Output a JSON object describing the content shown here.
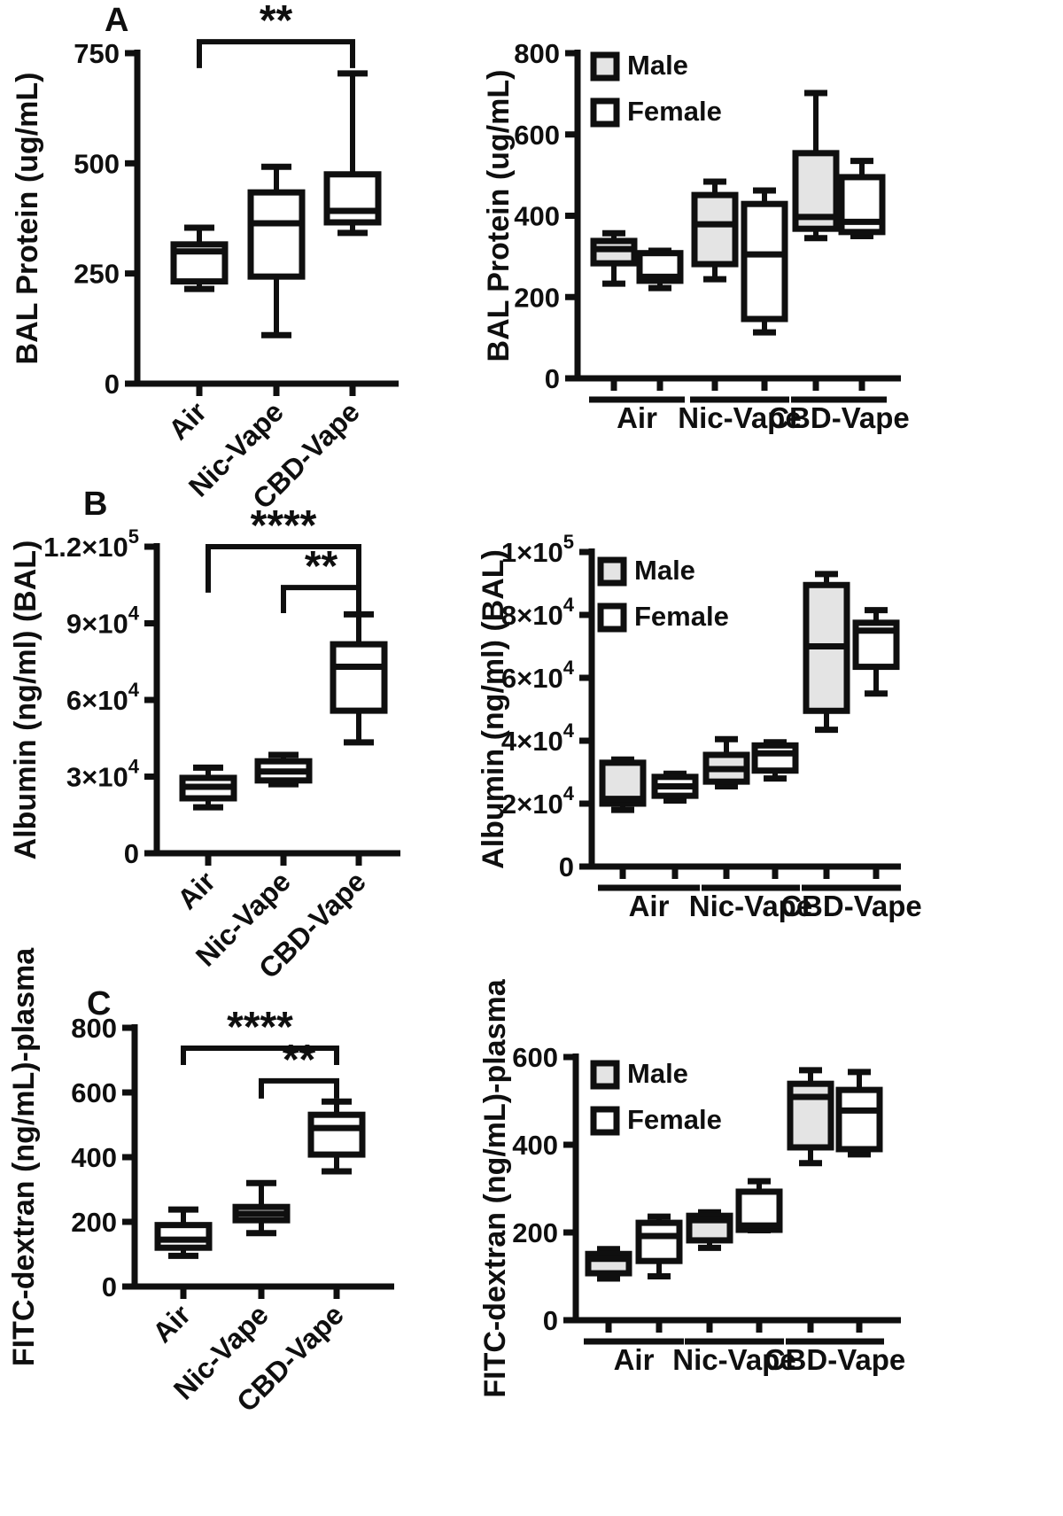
{
  "colors": {
    "ink": "#0f0f0f",
    "male_fill": "#e4e4e4",
    "female_fill": "#ffffff",
    "background": "#ffffff"
  },
  "legend": {
    "male_label": "Male",
    "female_label": "Female"
  },
  "panels": {
    "a_letter": "A",
    "b_letter": "B",
    "c_letter": "C"
  },
  "chart_data": [
    {
      "id": "protein-combined",
      "type": "box",
      "panel_letter": "A",
      "ylabel": "BAL Protein (ug/mL)",
      "ylim": [
        0,
        750
      ],
      "yticks": [
        {
          "v": 0,
          "label": "0"
        },
        {
          "v": 250,
          "label": "250"
        },
        {
          "v": 500,
          "label": "500"
        },
        {
          "v": 750,
          "label": "750"
        }
      ],
      "categories": [
        "Air",
        "Nic-Vape",
        "CBD-Vape"
      ],
      "legend": false,
      "boxes": [
        {
          "group": "Air",
          "whisker_low": 215,
          "q1": 232,
          "median": 300,
          "q3": 316,
          "whisker_high": 354,
          "fill": "female"
        },
        {
          "group": "Nic-Vape",
          "whisker_low": 110,
          "q1": 243,
          "median": 364,
          "q3": 434,
          "whisker_high": 492,
          "fill": "female"
        },
        {
          "group": "CBD-Vape",
          "whisker_low": 342,
          "q1": 366,
          "median": 392,
          "q3": 475,
          "whisker_high": 704,
          "fill": "female"
        }
      ],
      "significance": [
        {
          "from": 0,
          "to": 2,
          "label": "**",
          "y": 776,
          "drop": 60
        }
      ]
    },
    {
      "id": "protein-by-sex",
      "type": "box",
      "panel_letter": "",
      "ylabel": "BAL Protein (ug/mL)",
      "ylim": [
        0,
        800
      ],
      "yticks": [
        {
          "v": 0,
          "label": "0"
        },
        {
          "v": 200,
          "label": "200"
        },
        {
          "v": 400,
          "label": "400"
        },
        {
          "v": 600,
          "label": "600"
        },
        {
          "v": 800,
          "label": "800"
        }
      ],
      "categories": [
        "Air",
        "Nic-Vape",
        "CBD-Vape"
      ],
      "legend": true,
      "boxes": [
        {
          "group": "Air",
          "sex": "Male",
          "whisker_low": 233,
          "q1": 283,
          "median": 318,
          "q3": 338,
          "whisker_high": 357,
          "fill": "male"
        },
        {
          "group": "Air",
          "sex": "Female",
          "whisker_low": 222,
          "q1": 240,
          "median": 250,
          "q3": 308,
          "whisker_high": 314,
          "fill": "female"
        },
        {
          "group": "Nic-Vape",
          "sex": "Male",
          "whisker_low": 244,
          "q1": 281,
          "median": 379,
          "q3": 451,
          "whisker_high": 484,
          "fill": "male"
        },
        {
          "group": "Nic-Vape",
          "sex": "Female",
          "whisker_low": 113,
          "q1": 146,
          "median": 305,
          "q3": 429,
          "whisker_high": 462,
          "fill": "female"
        },
        {
          "group": "CBD-Vape",
          "sex": "Male",
          "whisker_low": 345,
          "q1": 368,
          "median": 397,
          "q3": 554,
          "whisker_high": 702,
          "fill": "male"
        },
        {
          "group": "CBD-Vape",
          "sex": "Female",
          "whisker_low": 350,
          "q1": 360,
          "median": 385,
          "q3": 495,
          "whisker_high": 535,
          "fill": "female"
        }
      ],
      "significance": []
    },
    {
      "id": "albumin-combined",
      "type": "box",
      "panel_letter": "B",
      "ylabel": "Albumin (ng/ml) (BAL)",
      "ylim": [
        0,
        120000
      ],
      "yticks": [
        {
          "v": 0,
          "label": "0"
        },
        {
          "v": 30000,
          "label": "3×10^4"
        },
        {
          "v": 60000,
          "label": "6×10^4"
        },
        {
          "v": 90000,
          "label": "9×10^4"
        },
        {
          "v": 120000,
          "label": "1.2×10^5"
        }
      ],
      "categories": [
        "Air",
        "Nic-Vape",
        "CBD-Vape"
      ],
      "legend": false,
      "boxes": [
        {
          "group": "Air",
          "whisker_low": 18000,
          "q1": 21500,
          "median": 26000,
          "q3": 29500,
          "whisker_high": 33500,
          "fill": "female"
        },
        {
          "group": "Nic-Vape",
          "whisker_low": 27000,
          "q1": 28500,
          "median": 32000,
          "q3": 36000,
          "whisker_high": 38500,
          "fill": "female"
        },
        {
          "group": "CBD-Vape",
          "whisker_low": 43400,
          "q1": 55800,
          "median": 73000,
          "q3": 81800,
          "whisker_high": 93500,
          "fill": "female"
        }
      ],
      "significance": [
        {
          "from": 0,
          "to": 2,
          "label": "****",
          "y": 120000,
          "drop": 18000
        },
        {
          "from": 1,
          "to": 2,
          "label": "**",
          "y": 104000,
          "drop": 10000
        }
      ]
    },
    {
      "id": "albumin-by-sex",
      "type": "box",
      "panel_letter": "",
      "ylabel": "Albumin (ng/ml) (BAL)",
      "ylim": [
        0,
        100000
      ],
      "yticks": [
        {
          "v": 0,
          "label": "0"
        },
        {
          "v": 20000,
          "label": "2×10^4"
        },
        {
          "v": 40000,
          "label": "4×10^4"
        },
        {
          "v": 60000,
          "label": "6×10^4"
        },
        {
          "v": 80000,
          "label": "8×10^4"
        },
        {
          "v": 100000,
          "label": "1×10^5"
        }
      ],
      "categories": [
        "Air",
        "Nic-Vape",
        "CBD-Vape"
      ],
      "legend": true,
      "boxes": [
        {
          "group": "Air",
          "sex": "Male",
          "whisker_low": 18000,
          "q1": 20000,
          "median": 21500,
          "q3": 33000,
          "whisker_high": 34000,
          "fill": "male"
        },
        {
          "group": "Air",
          "sex": "Female",
          "whisker_low": 21000,
          "q1": 22500,
          "median": 25500,
          "q3": 28500,
          "whisker_high": 29500,
          "fill": "female"
        },
        {
          "group": "Nic-Vape",
          "sex": "Male",
          "whisker_low": 25500,
          "q1": 27000,
          "median": 31000,
          "q3": 35500,
          "whisker_high": 40500,
          "fill": "male"
        },
        {
          "group": "Nic-Vape",
          "sex": "Female",
          "whisker_low": 28000,
          "q1": 30500,
          "median": 36000,
          "q3": 38500,
          "whisker_high": 39500,
          "fill": "female"
        },
        {
          "group": "CBD-Vape",
          "sex": "Male",
          "whisker_low": 43500,
          "q1": 49500,
          "median": 70000,
          "q3": 89500,
          "whisker_high": 93000,
          "fill": "male"
        },
        {
          "group": "CBD-Vape",
          "sex": "Female",
          "whisker_low": 55000,
          "q1": 63500,
          "median": 75000,
          "q3": 77500,
          "whisker_high": 81500,
          "fill": "female"
        }
      ],
      "significance": []
    },
    {
      "id": "fitc-combined",
      "type": "box",
      "panel_letter": "C",
      "ylabel": "FITC-dextran (ng/mL)-plasma",
      "ylim": [
        0,
        800
      ],
      "yticks": [
        {
          "v": 0,
          "label": "0"
        },
        {
          "v": 200,
          "label": "200"
        },
        {
          "v": 400,
          "label": "400"
        },
        {
          "v": 600,
          "label": "600"
        },
        {
          "v": 800,
          "label": "800"
        }
      ],
      "categories": [
        "Air",
        "Nic-Vape",
        "CBD-Vape"
      ],
      "legend": false,
      "boxes": [
        {
          "group": "Air",
          "whisker_low": 95,
          "q1": 120,
          "median": 145,
          "q3": 190,
          "whisker_high": 238,
          "fill": "female"
        },
        {
          "group": "Nic-Vape",
          "whisker_low": 165,
          "q1": 205,
          "median": 225,
          "q3": 246,
          "whisker_high": 320,
          "fill": "female"
        },
        {
          "group": "CBD-Vape",
          "whisker_low": 356,
          "q1": 408,
          "median": 490,
          "q3": 531,
          "whisker_high": 572,
          "fill": "female"
        }
      ],
      "significance": [
        {
          "from": 0,
          "to": 2,
          "label": "****",
          "y": 737,
          "drop": 52
        },
        {
          "from": 1,
          "to": 2,
          "label": "**",
          "y": 636,
          "drop": 55
        }
      ]
    },
    {
      "id": "fitc-by-sex",
      "type": "box",
      "panel_letter": "",
      "ylabel": "FITC-dextran (ng/mL)-plasma",
      "ylim": [
        0,
        600
      ],
      "yticks": [
        {
          "v": 0,
          "label": "0"
        },
        {
          "v": 200,
          "label": "200"
        },
        {
          "v": 400,
          "label": "400"
        },
        {
          "v": 600,
          "label": "600"
        }
      ],
      "categories": [
        "Air",
        "Nic-Vape",
        "CBD-Vape"
      ],
      "legend": true,
      "boxes": [
        {
          "group": "Air",
          "sex": "Male",
          "whisker_low": 95,
          "q1": 107,
          "median": 140,
          "q3": 151,
          "whisker_high": 162,
          "fill": "male"
        },
        {
          "group": "Air",
          "sex": "Female",
          "whisker_low": 100,
          "q1": 135,
          "median": 192,
          "q3": 222,
          "whisker_high": 236,
          "fill": "female"
        },
        {
          "group": "Nic-Vape",
          "sex": "Male",
          "whisker_low": 165,
          "q1": 182,
          "median": 228,
          "q3": 238,
          "whisker_high": 246,
          "fill": "male"
        },
        {
          "group": "Nic-Vape",
          "sex": "Female",
          "whisker_low": 205,
          "q1": 206,
          "median": 216,
          "q3": 293,
          "whisker_high": 317,
          "fill": "female"
        },
        {
          "group": "CBD-Vape",
          "sex": "Male",
          "whisker_low": 358,
          "q1": 394,
          "median": 509,
          "q3": 539,
          "whisker_high": 570,
          "fill": "male"
        },
        {
          "group": "CBD-Vape",
          "sex": "Female",
          "whisker_low": 378,
          "q1": 390,
          "median": 478,
          "q3": 525,
          "whisker_high": 566,
          "fill": "female"
        }
      ],
      "significance": []
    }
  ]
}
